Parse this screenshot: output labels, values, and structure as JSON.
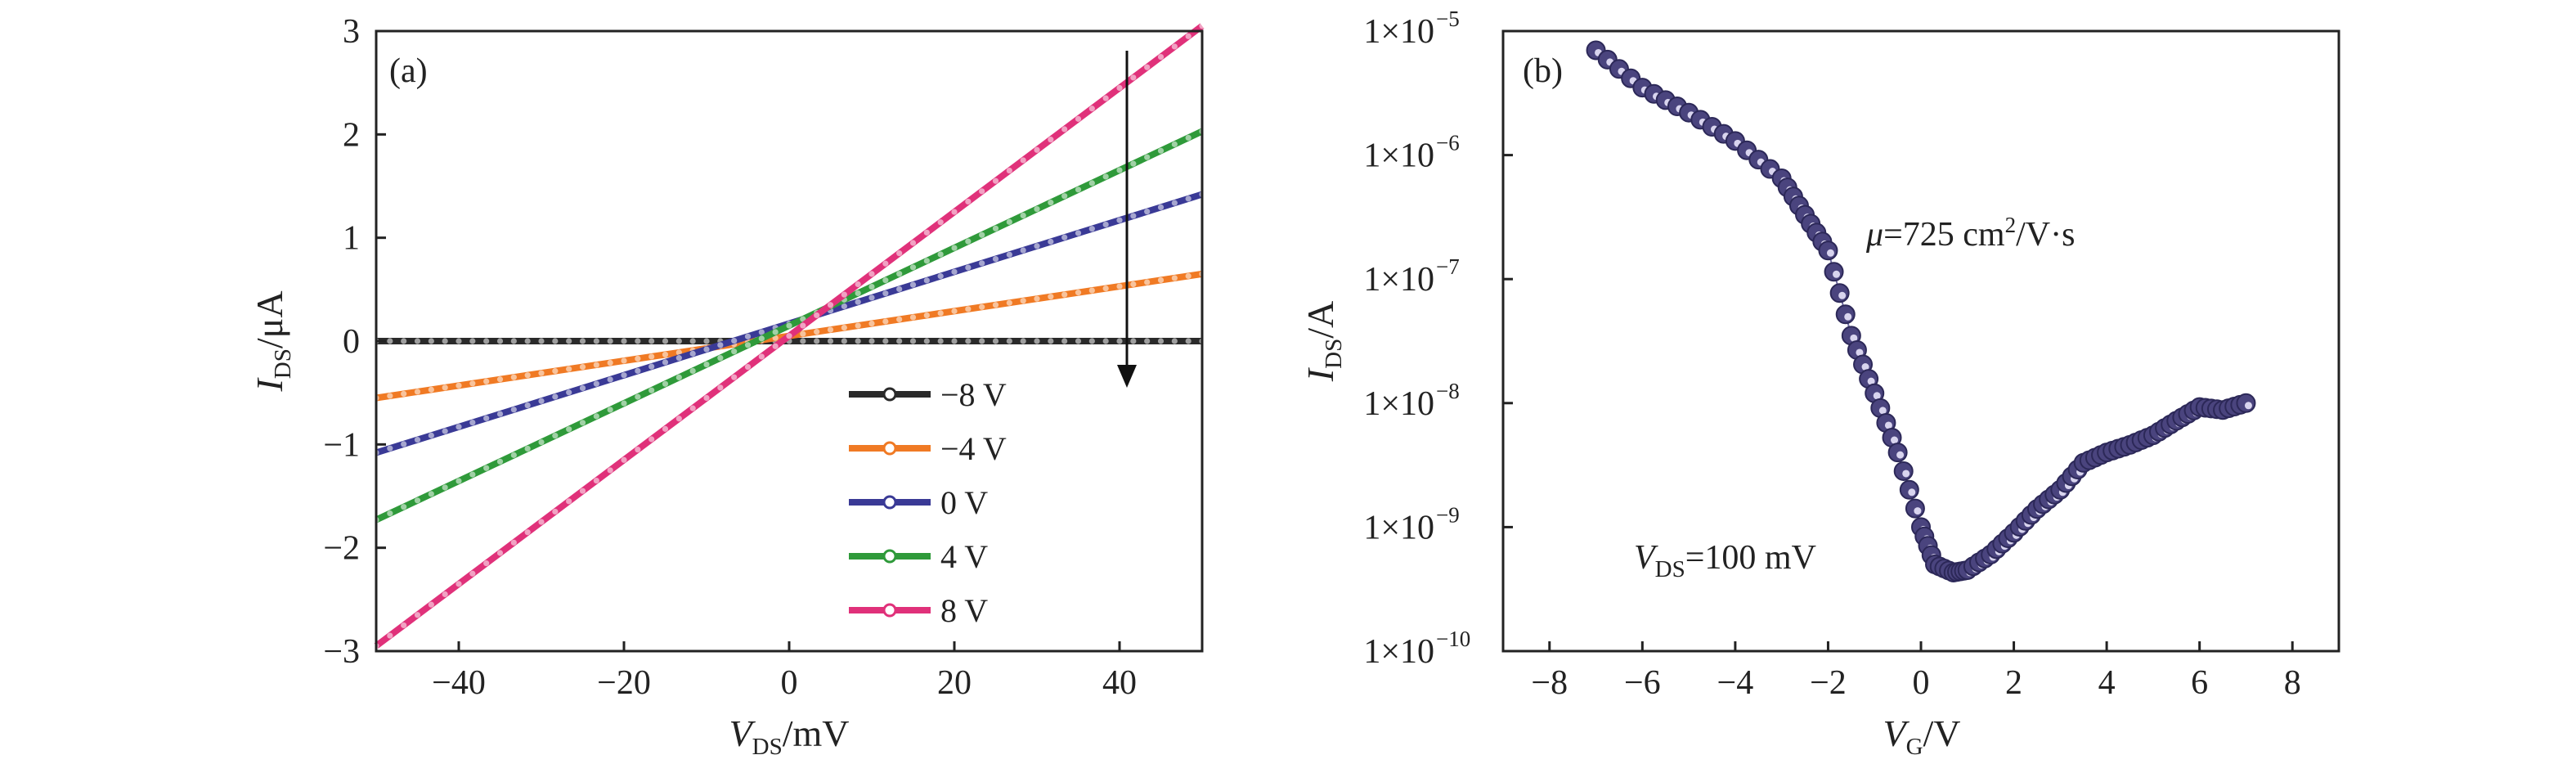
{
  "chart_data": [
    {
      "panel": "(a)",
      "type": "line",
      "xlabel": "V",
      "xlabel_sub": "DS",
      "xlabel_unit": "/mV",
      "ylabel": "I",
      "ylabel_sub": "DS",
      "ylabel_unit": "/μA",
      "xlim": [
        -50,
        50
      ],
      "ylim": [
        -3,
        3
      ],
      "xticks": [
        "−40",
        "−20",
        "0",
        "20",
        "40"
      ],
      "xtick_values": [
        -40,
        -20,
        0,
        20,
        40
      ],
      "yticks": [
        "−3",
        "−2",
        "−1",
        "0",
        "1",
        "2",
        "3"
      ],
      "ytick_values": [
        -3,
        -2,
        -1,
        0,
        1,
        2,
        3
      ],
      "grid": false,
      "legend_position": "bottom-center",
      "x": [
        -50,
        50
      ],
      "series": [
        {
          "name": "−8 V",
          "color": "#2a2a2a",
          "values": [
            0.0,
            0.0
          ]
        },
        {
          "name": "−4 V",
          "color": "#f07a24",
          "values": [
            -0.55,
            0.65
          ]
        },
        {
          "name": "0 V",
          "color": "#3a3a96",
          "values": [
            -1.08,
            1.42
          ]
        },
        {
          "name": "4 V",
          "color": "#2f9a3a",
          "values": [
            -1.73,
            2.03
          ]
        },
        {
          "name": "8 V",
          "color": "#e0317a",
          "values": [
            -2.95,
            3.05
          ]
        }
      ],
      "annotations": [
        "downward arrow at V_DS = 40 mV indicating decreasing gate voltage"
      ]
    },
    {
      "panel": "(b)",
      "type": "scatter",
      "xlabel": "V",
      "xlabel_sub": "G",
      "xlabel_unit": "/V",
      "ylabel": "I",
      "ylabel_sub": "DS",
      "ylabel_unit": "/A",
      "xlim": [
        -9,
        9
      ],
      "ylim": [
        1e-10,
        1e-05
      ],
      "yscale": "log",
      "xticks": [
        "−8",
        "−6",
        "−4",
        "−2",
        "0",
        "2",
        "4",
        "6",
        "8"
      ],
      "xtick_values": [
        -8,
        -6,
        -4,
        -2,
        0,
        2,
        4,
        6,
        8
      ],
      "yticks_base": "1×10",
      "ytick_exponents": [
        "−10",
        "−9",
        "−8",
        "−7",
        "−6",
        "−5"
      ],
      "grid": false,
      "color": "#3b3570",
      "points": [
        {
          "x": -7.0,
          "y": 7e-06
        },
        {
          "x": -6.0,
          "y": 3.5e-06
        },
        {
          "x": -5.0,
          "y": 2.2e-06
        },
        {
          "x": -4.0,
          "y": 1.3e-06
        },
        {
          "x": -3.0,
          "y": 6.5e-07
        },
        {
          "x": -2.5,
          "y": 3.3e-07
        },
        {
          "x": -2.0,
          "y": 1.7e-07
        },
        {
          "x": -1.5,
          "y": 3.5e-08
        },
        {
          "x": -1.0,
          "y": 1.2e-08
        },
        {
          "x": -0.5,
          "y": 4e-09
        },
        {
          "x": 0.0,
          "y": 1e-09
        },
        {
          "x": 0.3,
          "y": 5e-10
        },
        {
          "x": 0.7,
          "y": 4.3e-10
        },
        {
          "x": 1.0,
          "y": 4.5e-10
        },
        {
          "x": 1.5,
          "y": 6e-10
        },
        {
          "x": 2.0,
          "y": 9e-10
        },
        {
          "x": 2.5,
          "y": 1.4e-09
        },
        {
          "x": 3.0,
          "y": 2e-09
        },
        {
          "x": 3.5,
          "y": 3.3e-09
        },
        {
          "x": 4.0,
          "y": 4e-09
        },
        {
          "x": 4.5,
          "y": 4.6e-09
        },
        {
          "x": 5.0,
          "y": 5.5e-09
        },
        {
          "x": 5.5,
          "y": 7.2e-09
        },
        {
          "x": 6.0,
          "y": 9.3e-09
        },
        {
          "x": 6.5,
          "y": 8.8e-09
        },
        {
          "x": 7.0,
          "y": 1e-08
        }
      ],
      "annotations": [
        {
          "var": "μ",
          "text": "=725 cm",
          "sup": "2",
          "tail": "/V·s"
        },
        {
          "var": "V",
          "sub": "DS",
          "text": "=100 mV"
        }
      ]
    }
  ]
}
